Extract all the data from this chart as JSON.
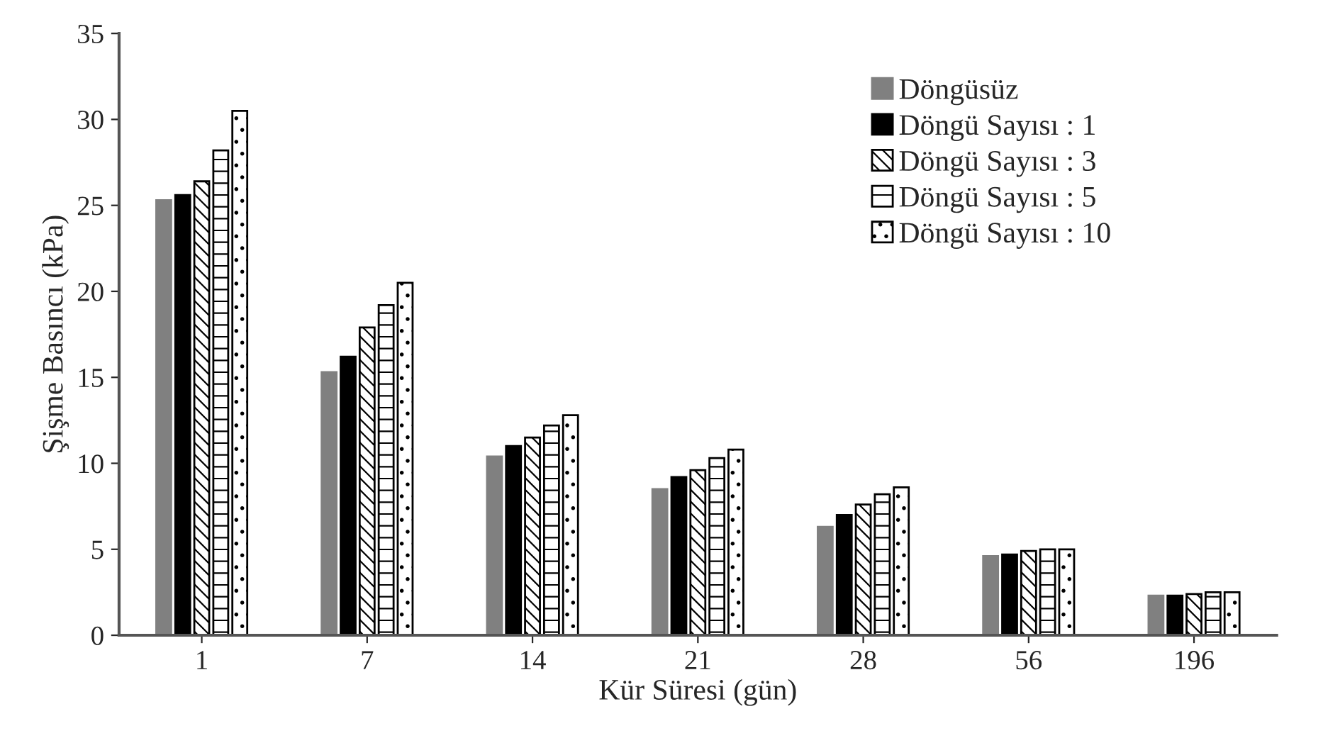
{
  "chart_data": {
    "type": "bar",
    "xlabel": "Kür Süresi (gün)",
    "ylabel": "Şişme Basıncı (kPa)",
    "categories": [
      "1",
      "7",
      "14",
      "21",
      "28",
      "56",
      "196"
    ],
    "series": [
      {
        "name": "Döngüsüz",
        "color": "#808080",
        "values": [
          25.3,
          15.3,
          10.4,
          8.5,
          6.3,
          4.6,
          2.3
        ]
      },
      {
        "name": "Döngü Sayısı : 1",
        "color": "#000000",
        "values": [
          25.6,
          16.2,
          11.0,
          9.2,
          7.0,
          4.7,
          2.3
        ]
      },
      {
        "name": "Döngü Sayısı : 3",
        "color": "#000000",
        "values": [
          26.4,
          17.9,
          11.5,
          9.6,
          7.6,
          4.9,
          2.4
        ]
      },
      {
        "name": "Döngü Sayısı : 5",
        "color": "#000000",
        "values": [
          28.2,
          19.2,
          12.2,
          10.3,
          8.2,
          5.0,
          2.5
        ]
      },
      {
        "name": "Döngü Sayısı : 10",
        "color": "#000000",
        "values": [
          30.5,
          20.5,
          12.8,
          10.8,
          8.6,
          5.0,
          2.5
        ]
      }
    ],
    "ylim": [
      0,
      35
    ],
    "yticks": [
      0,
      5,
      10,
      15,
      20,
      25,
      30,
      35
    ],
    "grid": false,
    "legend": "top right"
  }
}
